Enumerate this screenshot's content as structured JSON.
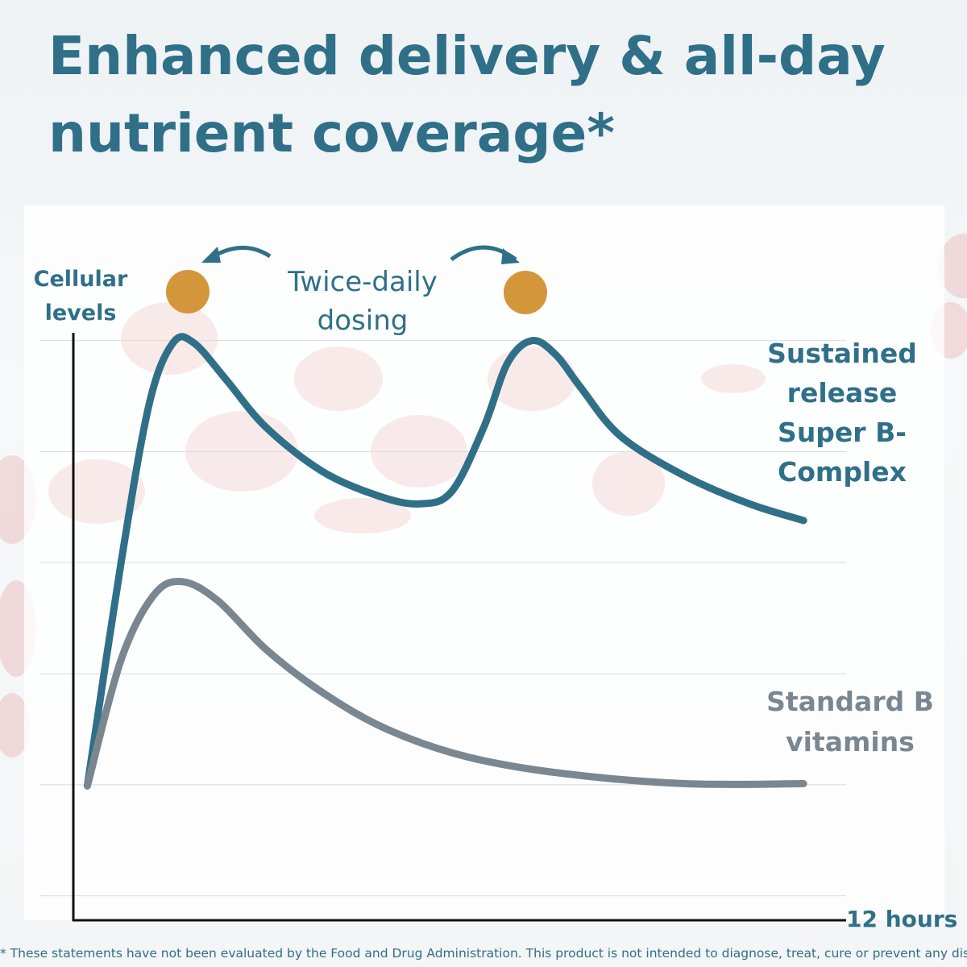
{
  "chart_data": {
    "type": "line",
    "title": "Enhanced delivery & all-day nutrient coverage*",
    "y_label": "Cellular levels",
    "x_label": "12 hours",
    "annotation": "Twice-daily dosing",
    "footnote": "* These statements have not been evaluated by the Food and Drug Administration. This product is not intended to diagnose, treat, cure or prevent any disease.",
    "xlim": [
      0,
      12
    ],
    "ylim": [
      -0.22,
      5.07
    ],
    "yticks": [
      0,
      1,
      2,
      3,
      4,
      5
    ],
    "grid": true,
    "series": [
      {
        "name": "Sustained release Super B- Complex",
        "color": "#2f7088",
        "x": [
          0.23,
          0.75,
          1.19,
          1.56,
          1.88,
          2.38,
          3.0,
          3.88,
          4.75,
          5.38,
          5.88,
          6.38,
          6.75,
          7.13,
          7.5,
          7.88,
          8.5,
          9.5,
          10.5,
          11.34
        ],
        "values": [
          0.99,
          2.99,
          4.43,
          4.98,
          4.98,
          4.65,
          4.22,
          3.82,
          3.6,
          3.53,
          3.64,
          4.22,
          4.8,
          5.0,
          4.87,
          4.58,
          4.14,
          3.78,
          3.53,
          3.38
        ]
      },
      {
        "name": "Standard B vitamins",
        "color": "#7a8791",
        "x": [
          0.23,
          0.75,
          1.25,
          1.69,
          2.25,
          3.0,
          3.88,
          4.88,
          6.13,
          7.63,
          9.5,
          11.34
        ],
        "values": [
          0.99,
          2.12,
          2.7,
          2.83,
          2.66,
          2.22,
          1.83,
          1.5,
          1.25,
          1.1,
          1.01,
          1.01
        ]
      }
    ]
  }
}
